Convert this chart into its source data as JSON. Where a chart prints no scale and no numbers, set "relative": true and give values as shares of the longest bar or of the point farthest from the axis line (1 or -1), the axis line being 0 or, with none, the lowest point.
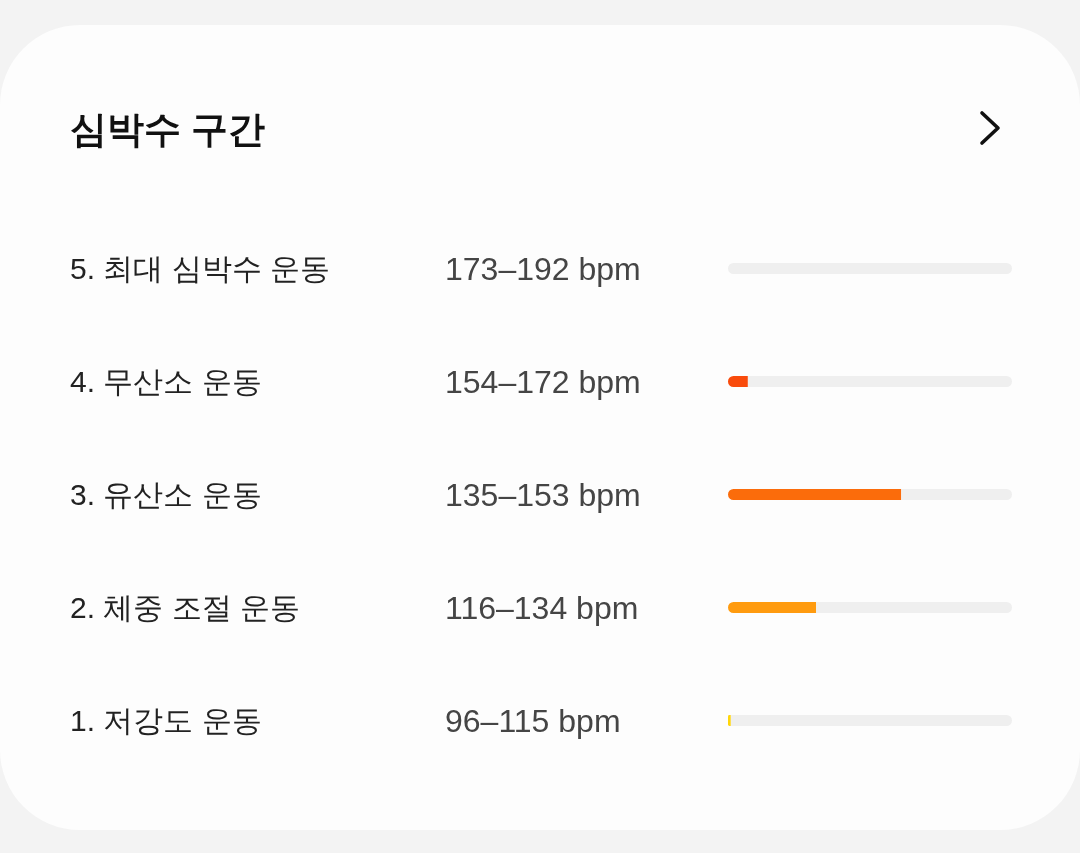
{
  "chart_data": {
    "type": "bar",
    "orientation": "horizontal",
    "relative": true,
    "stacked": true,
    "title": "심박수 구간",
    "categories": [
      "5. 최대 심박수 운동",
      "4. 무산소 운동",
      "3. 유산소 운동",
      "2. 체중 조절 운동",
      "1. 저강도 운동"
    ],
    "y2_categories": [
      "173–192 bpm",
      "154–172 bpm",
      "135–153 bpm",
      "116–134 bpm",
      "96–115 bpm"
    ],
    "series": [
      {
        "colors": [
          "#e8261c",
          "#f94b0c",
          "#fb6c0b",
          "#ff9b0f",
          "#ffd60a"
        ],
        "values": [
          0,
          0.07,
          0.61,
          0.31,
          0.01
        ]
      },
      {
        "color": "#efefef",
        "values": [
          1,
          0.93,
          0.39,
          0.69,
          0.99
        ]
      }
    ]
  }
}
